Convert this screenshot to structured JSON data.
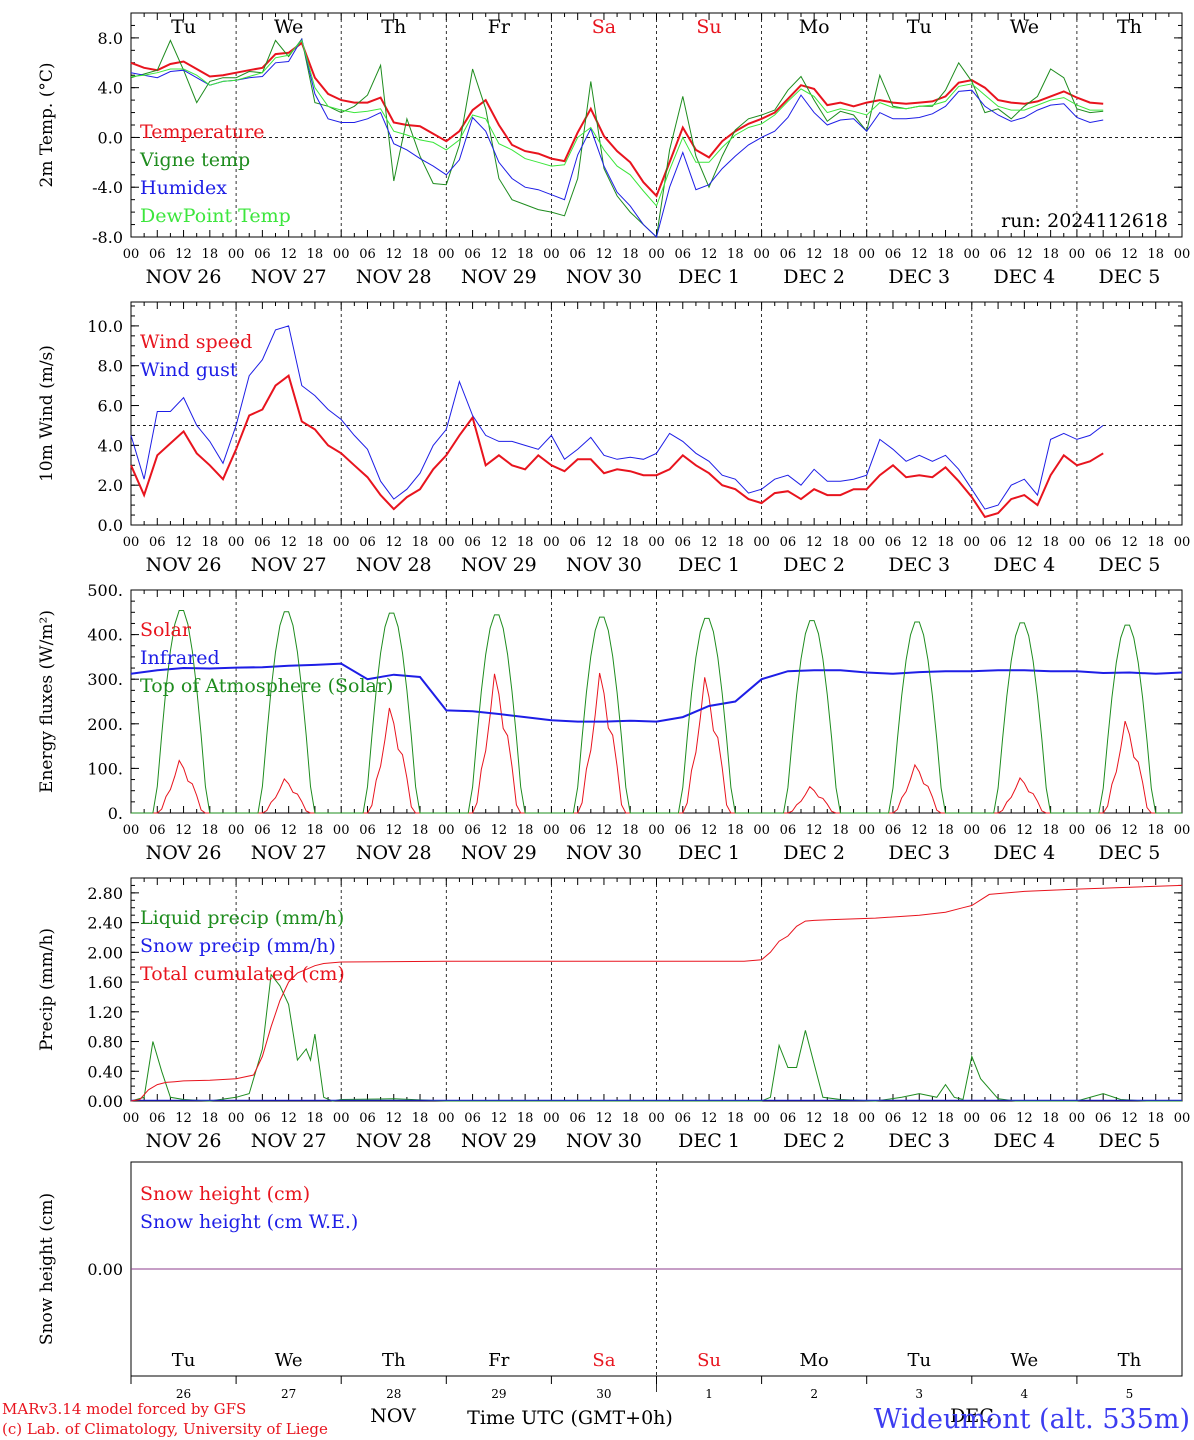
{
  "run_label": "run: 2024112618",
  "footer": {
    "credit1": "MARv3.14 model forced by GFS",
    "credit2": "(c) Lab. of Climatology, University of Liege",
    "xlabel": "Time UTC (GMT+0h)",
    "nov": "NOV",
    "dec": "DEC",
    "station": "Wideumont (alt. 535m)"
  },
  "colors": {
    "red": "#e8141e",
    "green": "#1e8c1e",
    "blue": "#1e1ee6",
    "lightgreen": "#3ce63c",
    "purple": "#8c3c8c"
  },
  "days": {
    "weekday": [
      "Tu",
      "We",
      "Th",
      "Fr",
      "Sa",
      "Su",
      "Mo",
      "Tu",
      "We",
      "Th"
    ],
    "weekend": [
      false,
      false,
      false,
      false,
      true,
      true,
      false,
      false,
      false,
      false
    ],
    "dates": [
      "NOV 26",
      "NOV 27",
      "NOV 28",
      "NOV 29",
      "NOV 30",
      "DEC  1",
      "DEC  2",
      "DEC  3",
      "DEC  4",
      "DEC  5"
    ],
    "daynum": [
      "26",
      "27",
      "28",
      "29",
      "30",
      "1",
      "2",
      "3",
      "4",
      "5"
    ],
    "hour_ticks": [
      "00",
      "06",
      "12",
      "18"
    ],
    "end_tick": "00"
  },
  "chart_data": [
    {
      "type": "line",
      "ylabel": "2m Temp. (°C)",
      "ylim": [
        -8,
        10
      ],
      "yticks": [
        "-8.0",
        "-4.0",
        "0.0",
        "4.0",
        "8.0"
      ],
      "ytick_values": [
        -8,
        -4,
        0,
        4,
        8
      ],
      "dashed_ref": 0,
      "x_hours": [
        0,
        3,
        6,
        9,
        12,
        15,
        18,
        21,
        24,
        27,
        30,
        33,
        36,
        39,
        42,
        45,
        48,
        51,
        54,
        57,
        60,
        63,
        66,
        69,
        72,
        75,
        78,
        81,
        84,
        87,
        90,
        93,
        96,
        99,
        102,
        105,
        108,
        111,
        114,
        117,
        120,
        123,
        126,
        129,
        132,
        135,
        138,
        141,
        144,
        147,
        150,
        153,
        156,
        159,
        162,
        165,
        168,
        171,
        174,
        177,
        180,
        183,
        186,
        189,
        192,
        195,
        198,
        201,
        204,
        207,
        210,
        213,
        216,
        219,
        222,
        225,
        228,
        231,
        234,
        237,
        240
      ],
      "series": [
        {
          "name": "Temperature",
          "color": "red",
          "width": 2,
          "values": [
            6.0,
            5.6,
            5.4,
            5.9,
            6.1,
            5.5,
            4.9,
            5.0,
            5.2,
            5.4,
            5.6,
            6.7,
            6.8,
            7.6,
            4.8,
            3.5,
            3.0,
            2.8,
            2.8,
            3.2,
            1.2,
            1.0,
            0.9,
            0.3,
            -0.3,
            0.5,
            2.2,
            3.0,
            1.0,
            -0.6,
            -1.1,
            -1.3,
            -1.7,
            -1.9,
            0.4,
            2.3,
            0.1,
            -1.1,
            -2.0,
            -3.6,
            -4.7,
            -2.0,
            0.8,
            -1.0,
            -1.6,
            -0.3,
            0.5,
            1.1,
            1.5,
            2.0,
            3.1,
            4.2,
            3.9,
            2.6,
            2.8,
            2.5,
            2.8,
            3.0,
            2.8,
            2.7,
            2.8,
            2.9,
            3.3,
            4.4,
            4.6,
            4.0,
            3.0,
            2.8,
            2.7,
            2.9,
            3.3,
            3.7,
            3.2,
            2.8,
            2.7
          ]
        },
        {
          "name": "Vigne temp",
          "color": "green",
          "width": 1,
          "values": [
            4.8,
            5.1,
            5.4,
            7.8,
            5.4,
            2.8,
            4.5,
            4.8,
            4.8,
            5.3,
            5.2,
            7.8,
            6.5,
            7.9,
            2.8,
            2.5,
            2.0,
            2.5,
            3.4,
            5.8,
            -3.5,
            1.5,
            -1.5,
            -3.7,
            -3.8,
            -0.6,
            5.5,
            2.3,
            -3.3,
            -5.0,
            -5.4,
            -5.8,
            -6.0,
            -6.3,
            -3.3,
            4.5,
            -2.5,
            -4.7,
            -6.0,
            -7.0,
            -8.0,
            -1.0,
            3.3,
            -1.5,
            -4.0,
            -1.5,
            0.6,
            1.5,
            1.8,
            2.2,
            3.8,
            4.9,
            3.0,
            1.3,
            2.1,
            1.8,
            0.5,
            5.0,
            2.5,
            2.3,
            2.5,
            2.5,
            3.8,
            6.0,
            4.5,
            2.0,
            2.3,
            1.5,
            2.5,
            3.3,
            5.5,
            4.8,
            2.3,
            2.0,
            2.1
          ]
        },
        {
          "name": "Humidex",
          "color": "blue",
          "width": 1,
          "values": [
            5.2,
            5.0,
            4.8,
            5.3,
            5.4,
            4.8,
            4.2,
            4.5,
            4.6,
            4.8,
            4.9,
            6.0,
            6.1,
            7.9,
            3.5,
            1.5,
            1.2,
            1.2,
            1.5,
            2.0,
            -0.5,
            -1.0,
            -1.7,
            -2.3,
            -3.0,
            -1.8,
            1.6,
            0.5,
            -2.0,
            -3.3,
            -4.0,
            -4.2,
            -4.6,
            -5.0,
            -1.4,
            0.7,
            -2.3,
            -4.4,
            -5.5,
            -7.0,
            -8.0,
            -4.0,
            -1.2,
            -4.2,
            -3.8,
            -2.5,
            -1.5,
            -0.6,
            0.0,
            0.5,
            1.6,
            3.4,
            2.0,
            1.0,
            1.4,
            1.5,
            0.5,
            2.0,
            1.5,
            1.5,
            1.6,
            1.9,
            2.5,
            3.7,
            3.8,
            2.5,
            1.8,
            1.3,
            1.6,
            2.2,
            2.6,
            2.7,
            1.6,
            1.2,
            1.4
          ]
        },
        {
          "name": "DewPoint Temp",
          "color": "lightgreen",
          "width": 1,
          "values": [
            4.9,
            5.0,
            5.2,
            5.5,
            5.5,
            5.0,
            4.2,
            4.5,
            4.6,
            4.9,
            5.2,
            6.4,
            6.6,
            7.8,
            4.0,
            2.5,
            2.2,
            2.0,
            2.1,
            2.3,
            0.5,
            0.2,
            -0.2,
            -0.4,
            -1.0,
            -0.2,
            1.8,
            1.5,
            -0.5,
            -1.0,
            -1.7,
            -2.0,
            -2.3,
            -2.2,
            0.0,
            0.8,
            -1.0,
            -2.3,
            -3.0,
            -4.3,
            -5.5,
            -2.6,
            0.0,
            -2.0,
            -2.0,
            -0.8,
            0.2,
            0.8,
            1.1,
            1.8,
            2.9,
            3.9,
            3.3,
            2.0,
            2.3,
            2.1,
            1.8,
            2.8,
            2.4,
            2.3,
            2.5,
            2.6,
            2.9,
            4.1,
            4.3,
            3.4,
            2.5,
            2.2,
            2.2,
            2.6,
            3.0,
            3.2,
            2.6,
            2.2,
            2.2
          ]
        }
      ]
    },
    {
      "type": "line",
      "ylabel": "10m Wind (m/s)",
      "ylim": [
        0,
        11.2
      ],
      "yticks": [
        "0.0",
        "2.0",
        "4.0",
        "6.0",
        "8.0",
        "10.0"
      ],
      "ytick_values": [
        0,
        2,
        4,
        6,
        8,
        10
      ],
      "dashed_ref": 5,
      "x_hours": [
        0,
        3,
        6,
        9,
        12,
        15,
        18,
        21,
        24,
        27,
        30,
        33,
        36,
        39,
        42,
        45,
        48,
        51,
        54,
        57,
        60,
        63,
        66,
        69,
        72,
        75,
        78,
        81,
        84,
        87,
        90,
        93,
        96,
        99,
        102,
        105,
        108,
        111,
        114,
        117,
        120,
        123,
        126,
        129,
        132,
        135,
        138,
        141,
        144,
        147,
        150,
        153,
        156,
        159,
        162,
        165,
        168,
        171,
        174,
        177,
        180,
        183,
        186,
        189,
        192,
        195,
        198,
        201,
        204,
        207,
        210,
        213,
        216,
        219,
        222,
        225,
        228,
        231,
        234,
        237,
        240
      ],
      "series": [
        {
          "name": "Wind speed",
          "color": "red",
          "width": 2,
          "values": [
            3.0,
            1.5,
            3.5,
            4.1,
            4.7,
            3.6,
            3.0,
            2.3,
            3.8,
            5.5,
            5.8,
            7.0,
            7.5,
            5.2,
            4.8,
            4.0,
            3.6,
            3.0,
            2.4,
            1.5,
            0.8,
            1.4,
            1.8,
            2.8,
            3.5,
            4.5,
            5.4,
            3.0,
            3.5,
            3.0,
            2.8,
            3.5,
            3.0,
            2.7,
            3.3,
            3.3,
            2.6,
            2.8,
            2.7,
            2.5,
            2.5,
            2.8,
            3.5,
            3.0,
            2.6,
            2.0,
            1.8,
            1.3,
            1.1,
            1.6,
            1.7,
            1.3,
            1.8,
            1.5,
            1.5,
            1.8,
            1.8,
            2.5,
            3.0,
            2.4,
            2.5,
            2.4,
            2.9,
            2.2,
            1.4,
            0.4,
            0.6,
            1.3,
            1.5,
            1.0,
            2.5,
            3.5,
            3.0,
            3.2,
            3.6
          ]
        },
        {
          "name": "Wind gust",
          "color": "blue",
          "width": 1,
          "values": [
            4.5,
            2.3,
            5.7,
            5.7,
            6.4,
            5.0,
            4.2,
            3.1,
            5.0,
            7.5,
            8.3,
            9.8,
            10.0,
            7.0,
            6.5,
            5.8,
            5.3,
            4.5,
            3.8,
            2.2,
            1.3,
            1.8,
            2.6,
            4.0,
            4.8,
            7.2,
            5.5,
            4.5,
            4.2,
            4.2,
            4.0,
            3.8,
            4.5,
            3.3,
            3.8,
            4.4,
            3.5,
            3.3,
            3.4,
            3.3,
            3.6,
            4.6,
            4.2,
            3.6,
            3.2,
            2.5,
            2.3,
            1.6,
            1.8,
            2.3,
            2.5,
            2.0,
            2.8,
            2.2,
            2.2,
            2.3,
            2.5,
            4.3,
            3.8,
            3.2,
            3.5,
            3.2,
            3.5,
            2.8,
            1.8,
            0.8,
            1.0,
            2.0,
            2.3,
            1.5,
            4.3,
            4.6,
            4.3,
            4.5,
            5.0
          ]
        }
      ]
    },
    {
      "type": "line",
      "ylabel": "Energy fluxes (W/m²)",
      "ylim": [
        0,
        500
      ],
      "yticks": [
        "0.",
        "100.",
        "200.",
        "300.",
        "400.",
        "500."
      ],
      "ytick_values": [
        0,
        100,
        200,
        300,
        400,
        500
      ],
      "dashed_ref": null,
      "series": [
        {
          "name": "Solar",
          "color": "red",
          "width": 1,
          "type": "daily-peaks",
          "peaks": [
            120,
            78,
            240,
            318,
            320,
            310,
            60,
            110,
            80,
            210
          ]
        },
        {
          "name": "Infrared",
          "color": "blue",
          "width": 2,
          "x_hours": [
            0,
            6,
            12,
            18,
            24,
            30,
            36,
            42,
            48,
            54,
            60,
            66,
            72,
            78,
            84,
            90,
            96,
            102,
            108,
            114,
            120,
            126,
            132,
            138,
            144,
            150,
            156,
            162,
            168,
            174,
            180,
            186,
            192,
            198,
            204,
            210,
            216,
            222,
            228,
            234,
            240
          ],
          "values": [
            312,
            320,
            325,
            324,
            326,
            327,
            330,
            332,
            335,
            300,
            310,
            305,
            230,
            228,
            222,
            215,
            208,
            205,
            205,
            207,
            205,
            215,
            240,
            250,
            300,
            318,
            320,
            320,
            315,
            312,
            316,
            318,
            318,
            320,
            320,
            318,
            318,
            314,
            315,
            312,
            315
          ]
        },
        {
          "name": "Top of Atmosphere (Solar)",
          "color": "green",
          "width": 1,
          "type": "daily-peaks",
          "peaks": [
            458,
            455,
            452,
            448,
            443,
            440,
            435,
            432,
            430,
            425
          ]
        }
      ]
    },
    {
      "type": "line",
      "ylabel": "Precip (mm/h)",
      "ylim": [
        0,
        3.0
      ],
      "yticks": [
        "0.00",
        "0.40",
        "0.80",
        "1.20",
        "1.60",
        "2.00",
        "2.40",
        "2.80"
      ],
      "ytick_values": [
        0,
        0.4,
        0.8,
        1.2,
        1.6,
        2.0,
        2.4,
        2.8
      ],
      "dashed_ref": null,
      "series": [
        {
          "name": "Liquid precip (mm/h)",
          "color": "green",
          "width": 1,
          "x_hours": [
            0,
            3,
            5,
            7,
            9,
            12,
            18,
            24,
            27,
            30,
            32,
            34,
            36,
            38,
            40,
            41,
            42,
            44,
            46,
            48,
            60,
            72,
            120,
            144,
            146,
            148,
            150,
            152,
            154,
            156,
            158,
            162,
            170,
            176,
            180,
            184,
            186,
            188,
            190,
            192,
            194,
            198,
            202,
            216,
            222,
            226,
            232,
            240
          ],
          "values": [
            0,
            0.05,
            0.8,
            0.4,
            0.05,
            0.02,
            0,
            0.05,
            0.1,
            0.7,
            1.7,
            1.55,
            1.3,
            0.55,
            0.7,
            0.55,
            0.9,
            0.05,
            0,
            0.02,
            0.03,
            0,
            0,
            0,
            0.05,
            0.75,
            0.45,
            0.45,
            0.95,
            0.5,
            0.05,
            0.02,
            0,
            0.05,
            0.1,
            0.05,
            0.22,
            0.05,
            0.02,
            0.6,
            0.3,
            0.03,
            0,
            0,
            0.1,
            0.02,
            0,
            0
          ]
        },
        {
          "name": "Snow precip (mm/h)",
          "color": "blue",
          "width": 1,
          "x_hours": [
            0,
            240
          ],
          "values": [
            0.01,
            0.01
          ]
        },
        {
          "name": "Total cumulated (cm)",
          "color": "red",
          "width": 1,
          "x_hours": [
            0,
            2,
            4,
            6,
            8,
            10,
            12,
            18,
            24,
            28,
            30,
            32,
            34,
            36,
            38,
            40,
            42,
            44,
            48,
            72,
            96,
            120,
            140,
            144,
            146,
            148,
            150,
            152,
            154,
            156,
            160,
            170,
            180,
            186,
            190,
            192,
            196,
            204,
            216,
            240
          ],
          "values": [
            0,
            0.02,
            0.15,
            0.22,
            0.25,
            0.26,
            0.27,
            0.28,
            0.3,
            0.35,
            0.6,
            1.0,
            1.35,
            1.6,
            1.72,
            1.77,
            1.82,
            1.85,
            1.87,
            1.88,
            1.88,
            1.88,
            1.88,
            1.9,
            2.0,
            2.15,
            2.22,
            2.35,
            2.42,
            2.43,
            2.44,
            2.46,
            2.5,
            2.54,
            2.6,
            2.63,
            2.78,
            2.82,
            2.85,
            2.9
          ]
        }
      ]
    },
    {
      "type": "line",
      "ylabel": "Snow height (cm)",
      "ylim": [
        -1,
        1
      ],
      "yticks": [
        "0.00"
      ],
      "ytick_values": [
        0
      ],
      "dashed_ref": null,
      "series": [
        {
          "name": "Snow height (cm)",
          "color": "red",
          "width": 1,
          "x_hours": [
            0,
            240
          ],
          "values": [
            0,
            0
          ]
        },
        {
          "name": "Snow height (cm W.E.)",
          "color": "blue",
          "width": 1,
          "x_hours": [
            0,
            240
          ],
          "values": [
            0,
            0
          ]
        }
      ]
    }
  ]
}
